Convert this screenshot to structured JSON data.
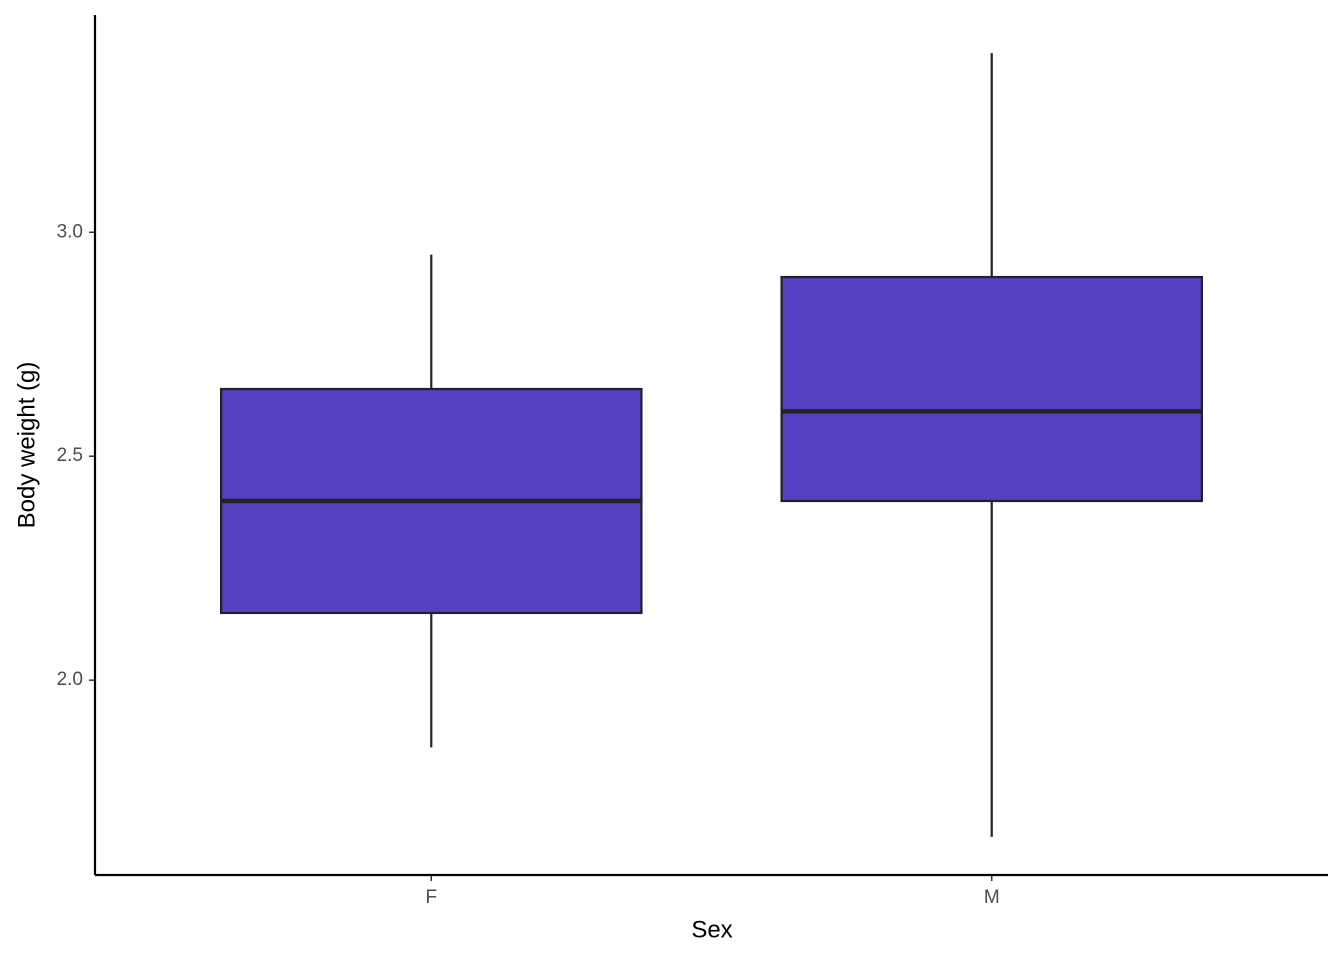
{
  "chart_data": {
    "type": "box",
    "x_label": "Sex",
    "y_label": "Body weight (g)",
    "categories": [
      "F",
      "M"
    ],
    "min": [
      1.85,
      1.65
    ],
    "q1": [
      2.15,
      2.4
    ],
    "median": [
      2.4,
      2.6
    ],
    "q3": [
      2.65,
      2.9
    ],
    "max": [
      2.95,
      3.4
    ],
    "color": "#5541c1",
    "ylim": [
      1.565,
      3.485
    ],
    "yticks": [
      {
        "value": 2,
        "label": "2.0"
      },
      2.5,
      {
        "value": 3,
        "label": "3.0"
      }
    ]
  }
}
